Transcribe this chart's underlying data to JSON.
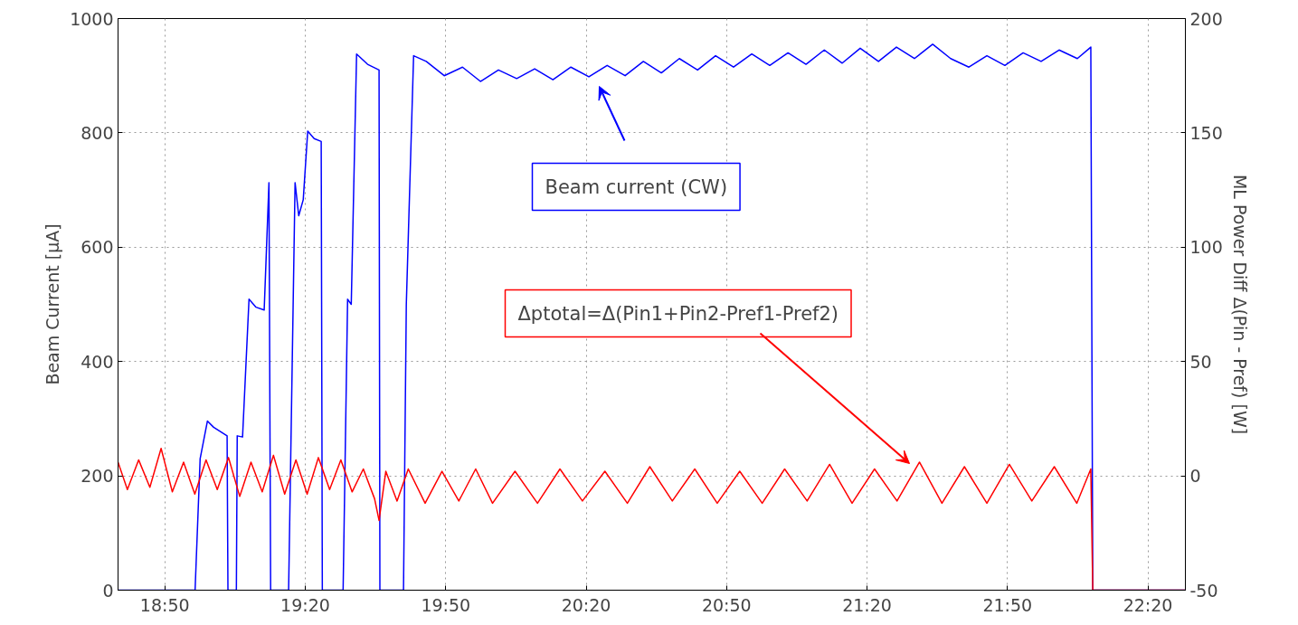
{
  "chart_data": {
    "type": "line",
    "ylabel": "Beam Current [μA]",
    "y2label": "ML Power Diff Δ(Pin - Pref) [W]",
    "xlim": [
      18.6667,
      22.4667
    ],
    "xticks": [
      {
        "value": 18.8333,
        "label": "18:50"
      },
      {
        "value": 19.3333,
        "label": "19:20"
      },
      {
        "value": 19.8333,
        "label": "19:50"
      },
      {
        "value": 20.3333,
        "label": "20:20"
      },
      {
        "value": 20.8333,
        "label": "20:50"
      },
      {
        "value": 21.3333,
        "label": "21:20"
      },
      {
        "value": 21.8333,
        "label": "21:50"
      },
      {
        "value": 22.3333,
        "label": "22:20"
      }
    ],
    "ylim": [
      0,
      1000
    ],
    "yticks": [
      0,
      200,
      400,
      600,
      800,
      1000
    ],
    "y2lim": [
      -50,
      200
    ],
    "y2ticks": [
      -50,
      0,
      50,
      100,
      150,
      200
    ],
    "grid": true,
    "marker": "none",
    "line_style": "solid",
    "series": [
      {
        "color": "#0000ff",
        "x": [
          18.6667,
          18.941,
          18.959,
          18.985,
          19.007,
          19.055,
          19.058,
          19.088,
          19.091,
          19.11,
          19.133,
          19.158,
          19.187,
          19.204,
          19.21,
          19.274,
          19.297,
          19.31,
          19.326,
          19.342,
          19.365,
          19.39,
          19.394,
          19.468,
          19.484,
          19.497,
          19.516,
          19.555,
          19.596,
          19.599,
          19.683,
          19.693,
          19.719,
          19.764,
          19.828,
          19.893,
          19.957,
          20.021,
          20.086,
          20.15,
          20.215,
          20.279,
          20.343,
          20.408,
          20.472,
          20.537,
          20.601,
          20.665,
          20.73,
          20.794,
          20.858,
          20.923,
          20.987,
          21.052,
          21.116,
          21.181,
          21.245,
          21.309,
          21.374,
          21.438,
          21.502,
          21.567,
          21.631,
          21.696,
          21.76,
          21.824,
          21.889,
          21.953,
          22.017,
          22.082,
          22.13,
          22.137,
          22.4667
        ],
        "values": [
          0,
          0,
          230,
          296,
          285,
          270,
          0,
          0,
          270,
          268,
          509,
          495,
          490,
          713,
          0,
          0,
          713,
          655,
          683,
          803,
          790,
          785,
          0,
          0,
          509,
          500,
          938,
          920,
          910,
          0,
          0,
          500,
          935,
          925,
          900,
          915,
          890,
          910,
          895,
          912,
          893,
          915,
          898,
          918,
          900,
          925,
          905,
          930,
          910,
          935,
          915,
          938,
          918,
          940,
          920,
          945,
          922,
          948,
          925,
          950,
          930,
          955,
          930,
          915,
          935,
          918,
          940,
          925,
          945,
          930,
          950,
          0,
          0
        ]
      },
      {
        "color": "#ff0000",
        "axis": "y2",
        "x": [
          18.6667,
          18.7,
          18.74,
          18.78,
          18.82,
          18.86,
          18.9,
          18.94,
          18.98,
          19.02,
          19.06,
          19.1,
          19.14,
          19.18,
          19.22,
          19.26,
          19.3,
          19.34,
          19.38,
          19.42,
          19.46,
          19.5,
          19.54,
          19.58,
          19.596,
          19.62,
          19.66,
          19.7,
          19.76,
          19.82,
          19.88,
          19.94,
          20.0,
          20.08,
          20.16,
          20.24,
          20.32,
          20.4,
          20.48,
          20.56,
          20.64,
          20.72,
          20.8,
          20.88,
          20.96,
          21.04,
          21.12,
          21.2,
          21.28,
          21.36,
          21.44,
          21.52,
          21.6,
          21.68,
          21.76,
          21.84,
          21.92,
          22.0,
          22.08,
          22.13,
          22.137,
          22.4667
        ],
        "values": [
          6,
          -6,
          7,
          -5,
          12,
          -7,
          6,
          -8,
          7,
          -6,
          8,
          -9,
          6,
          -7,
          9,
          -8,
          7,
          -8,
          8,
          -6,
          7,
          -7,
          3,
          -10,
          -19.5,
          2,
          -11,
          3,
          -12,
          2,
          -11,
          3,
          -12,
          2,
          -12,
          3,
          -11,
          2,
          -12,
          4,
          -11,
          3,
          -12,
          2,
          -12,
          3,
          -11,
          5,
          -12,
          3,
          -11,
          6,
          -12,
          4,
          -12,
          5,
          -11,
          4,
          -12,
          3,
          -50,
          -50
        ]
      }
    ],
    "annotations": [
      "Beam current (CW)",
      "Δptotal=Δ(Pin1+Pin2-Pref1-Pref2)"
    ]
  }
}
